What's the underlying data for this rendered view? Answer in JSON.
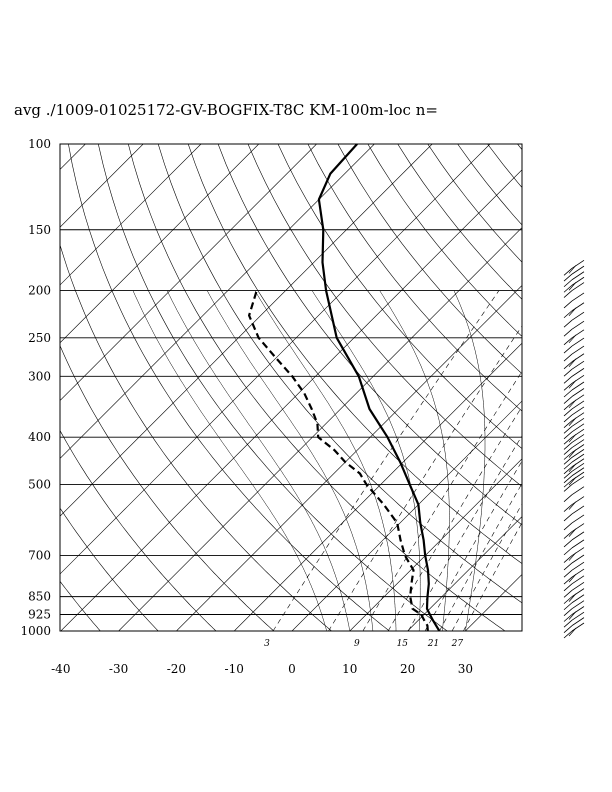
{
  "chart_data": {
    "type": "skew-t log-p sounding",
    "title": "avg ./1009-01025172-GV-BOGFIX-T8C KM-100m-loc n=",
    "pressure_levels": [
      "100",
      "150",
      "200",
      "250",
      "300",
      "400",
      "500",
      "700",
      "850",
      "925",
      "1000"
    ],
    "temperature_ticks": [
      "-40",
      "-30",
      "-20",
      "-10",
      "0",
      "10",
      "20",
      "30"
    ],
    "mixing_ratio_labels": [
      "3",
      "9",
      "15",
      "21",
      "27"
    ],
    "temperature_profile": [
      [
        1000,
        25.5
      ],
      [
        975,
        24.0
      ],
      [
        950,
        22.5
      ],
      [
        925,
        21.0
      ],
      [
        900,
        19.5
      ],
      [
        875,
        18.5
      ],
      [
        850,
        17.5
      ],
      [
        800,
        15.5
      ],
      [
        750,
        13.0
      ],
      [
        700,
        10.0
      ],
      [
        650,
        7.0
      ],
      [
        600,
        3.5
      ],
      [
        550,
        0.0
      ],
      [
        500,
        -5.0
      ],
      [
        450,
        -10.5
      ],
      [
        400,
        -17.0
      ],
      [
        350,
        -25.0
      ],
      [
        300,
        -32.5
      ],
      [
        250,
        -43.0
      ],
      [
        200,
        -53.0
      ],
      [
        175,
        -58.5
      ],
      [
        150,
        -64.0
      ],
      [
        130,
        -70.0
      ],
      [
        115,
        -72.5
      ],
      [
        100,
        -73.0
      ]
    ],
    "dewpoint_profile": [
      [
        1000,
        23.5
      ],
      [
        975,
        22.5
      ],
      [
        950,
        21.0
      ],
      [
        925,
        19.5
      ],
      [
        900,
        17.0
      ],
      [
        850,
        14.5
      ],
      [
        800,
        12.5
      ],
      [
        750,
        10.5
      ],
      [
        700,
        6.5
      ],
      [
        650,
        3.0
      ],
      [
        600,
        -0.5
      ],
      [
        550,
        -6.0
      ],
      [
        500,
        -12.5
      ],
      [
        475,
        -15.5
      ],
      [
        450,
        -20.0
      ],
      [
        425,
        -24.0
      ],
      [
        400,
        -29.0
      ],
      [
        375,
        -31.5
      ],
      [
        350,
        -35.0
      ],
      [
        325,
        -39.0
      ],
      [
        300,
        -44.0
      ],
      [
        275,
        -50.0
      ],
      [
        250,
        -56.5
      ],
      [
        225,
        -62.0
      ],
      [
        200,
        -65.0
      ]
    ],
    "wind_barbs": {
      "present": true,
      "pressures": [
        1000,
        975,
        950,
        925,
        900,
        875,
        850,
        825,
        800,
        775,
        750,
        725,
        700,
        675,
        650,
        625,
        600,
        575,
        550,
        525,
        500,
        490,
        480,
        470,
        460,
        450,
        440,
        430,
        420,
        410,
        400,
        390,
        380,
        370,
        360,
        350,
        340,
        330,
        320,
        310,
        300,
        290,
        280,
        270,
        260,
        250,
        240,
        230,
        220,
        210,
        200,
        195,
        190,
        185,
        180
      ]
    },
    "xlim": [
      -40,
      40
    ],
    "ylim": [
      1000,
      100
    ],
    "yscale": "log",
    "skew": "45 degrees",
    "line_styles": {
      "temperature": "solid",
      "dewpoint": "dashed"
    }
  }
}
